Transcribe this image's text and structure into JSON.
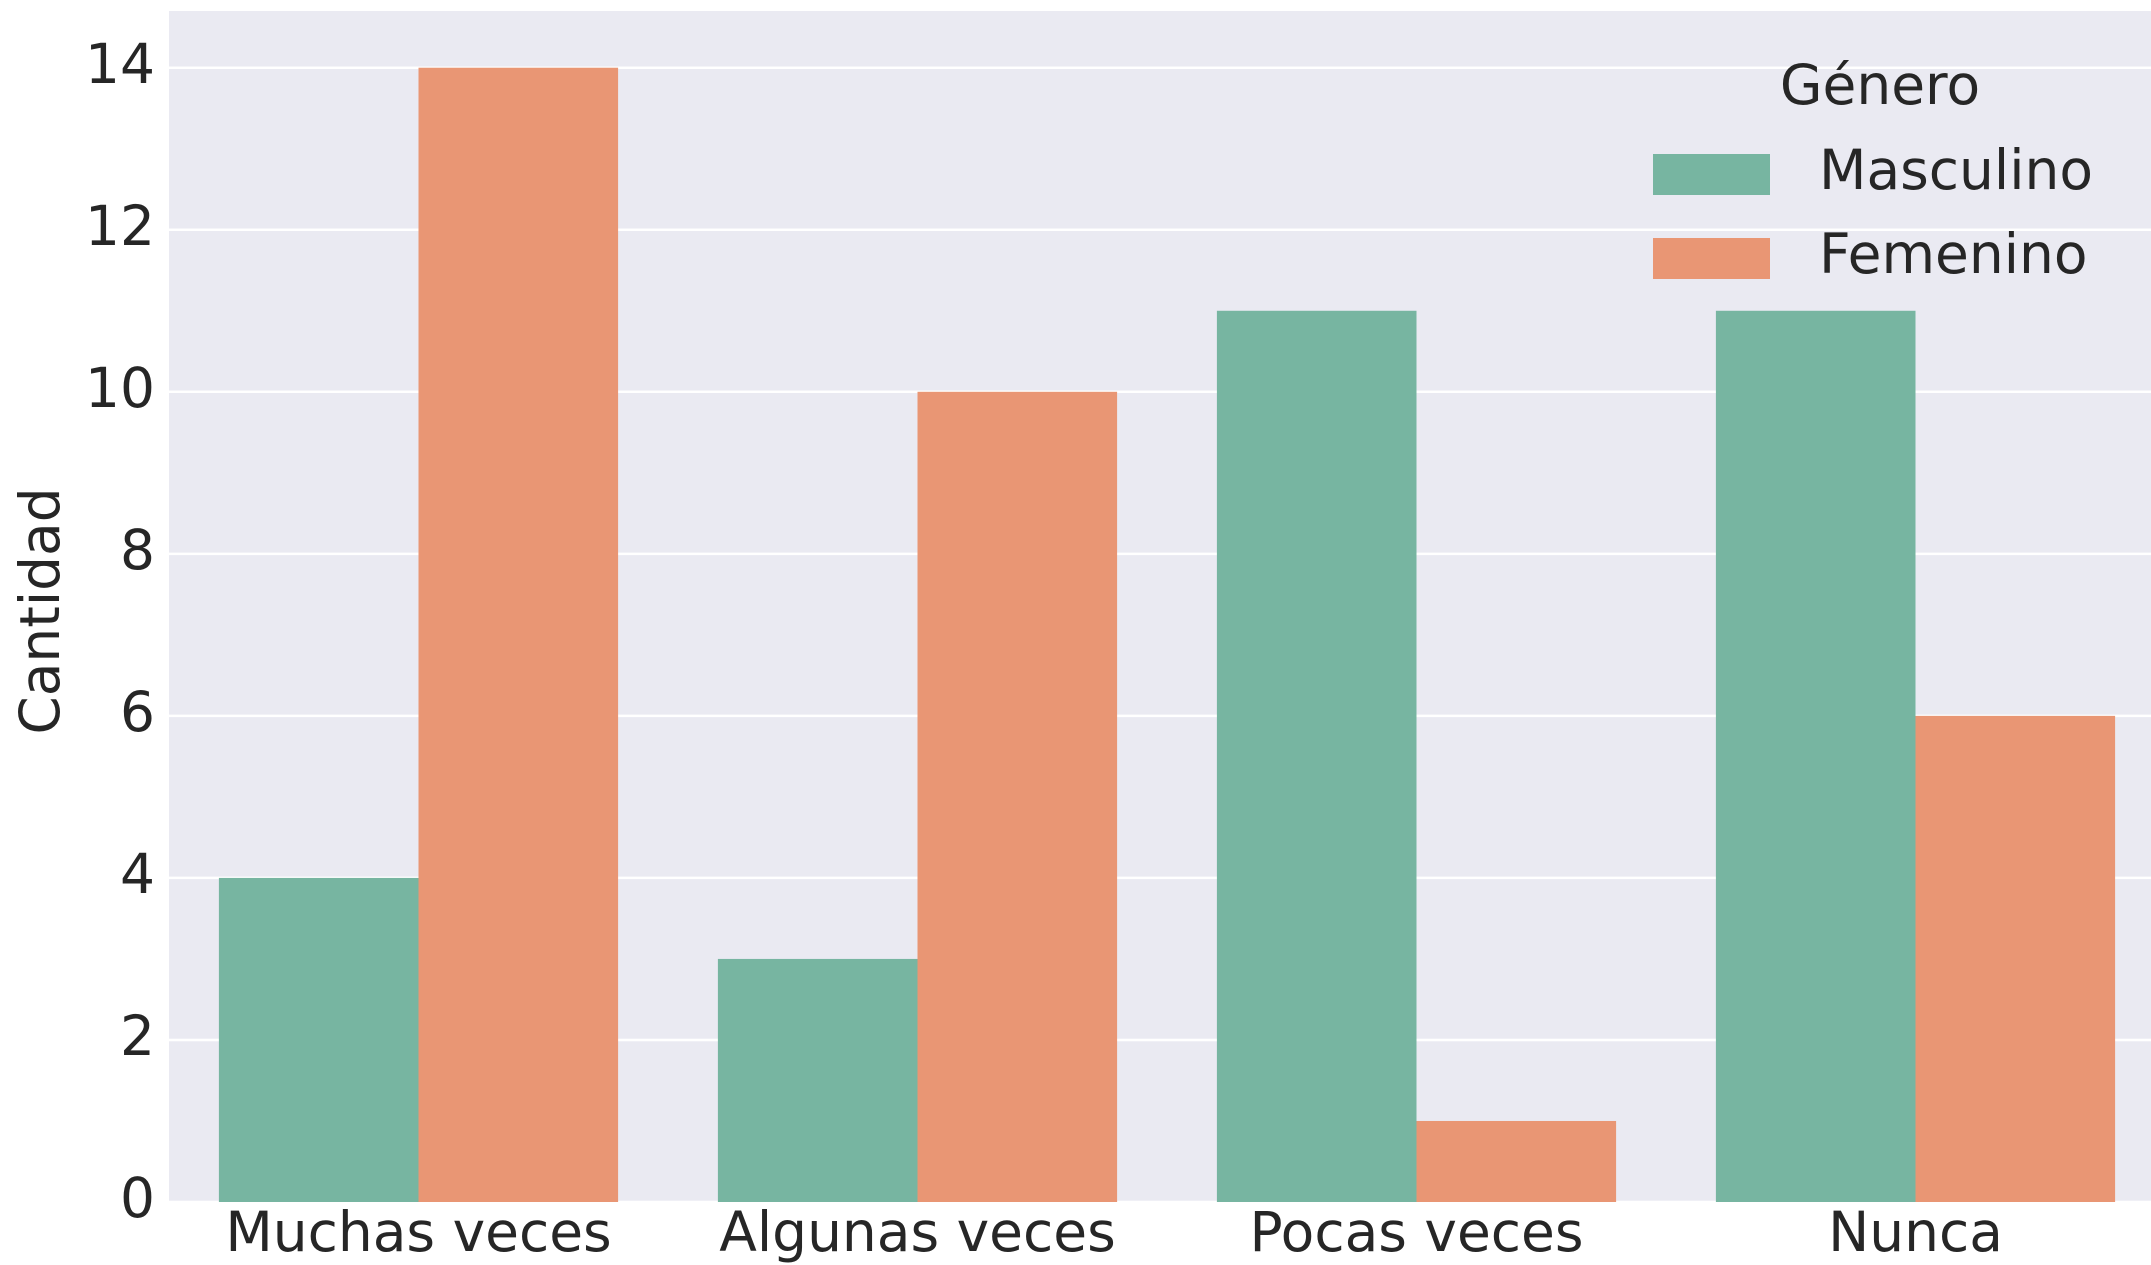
{
  "chart_data": {
    "type": "bar",
    "categories": [
      "Muchas veces",
      "Algunas veces",
      "Pocas veces",
      "Nunca"
    ],
    "series": [
      {
        "name": "Masculino",
        "color": "#77b5a1",
        "values": [
          4,
          3,
          11,
          11
        ]
      },
      {
        "name": "Femenino",
        "color": "#e99674",
        "values": [
          14,
          10,
          1,
          6
        ]
      }
    ],
    "ylabel": "Cantidad",
    "legend_title": "Género",
    "legend": "upper right",
    "ylim": [
      0,
      14.7
    ],
    "yticks": [
      0,
      2,
      4,
      6,
      8,
      10,
      12,
      14
    ],
    "grid": true
  }
}
